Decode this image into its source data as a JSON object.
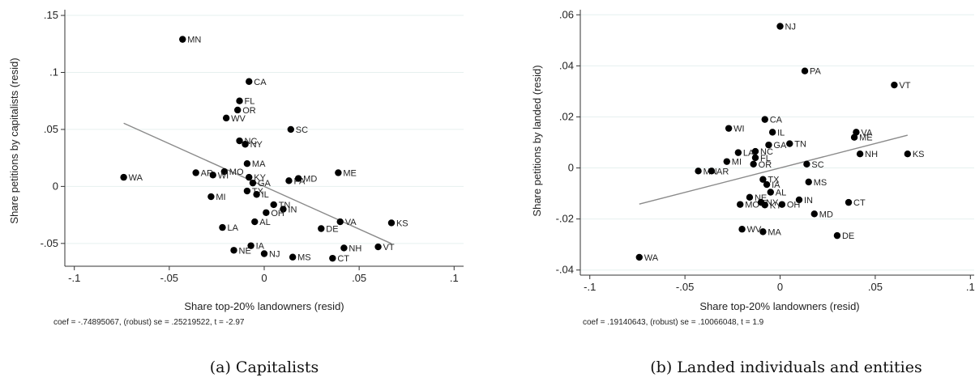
{
  "chart_data": [
    {
      "type": "scatter",
      "xlabel": "Share top-20% landowners (resid)",
      "ylabel": "Share petitions by capitalists (resid)",
      "xlim": [
        -0.105,
        0.105
      ],
      "ylim": [
        -0.07,
        0.155
      ],
      "xticks": [
        -0.1,
        -0.05,
        0,
        0.05,
        0.1
      ],
      "xtick_labels": [
        "-.1",
        "-.05",
        "0",
        ".05",
        ".1"
      ],
      "yticks": [
        -0.05,
        0,
        0.05,
        0.1,
        0.15
      ],
      "ytick_labels": [
        "-.05",
        "0",
        ".05",
        ".1",
        ".15"
      ],
      "grid": "horizontal",
      "fit_line": {
        "intercept": 0,
        "slope": -0.74895067
      },
      "note": "coef = -.74895067, (robust) se = .25219522, t = -2.97",
      "caption": "(a) Capitalists",
      "points": [
        {
          "label": "MN",
          "x": -0.043,
          "y": 0.129
        },
        {
          "label": "CA",
          "x": -0.008,
          "y": 0.092
        },
        {
          "label": "FL",
          "x": -0.013,
          "y": 0.075
        },
        {
          "label": "OR",
          "x": -0.014,
          "y": 0.067
        },
        {
          "label": "WV",
          "x": -0.02,
          "y": 0.06
        },
        {
          "label": "SC",
          "x": 0.014,
          "y": 0.05
        },
        {
          "label": "NC",
          "x": -0.013,
          "y": 0.04
        },
        {
          "label": "NY",
          "x": -0.01,
          "y": 0.037
        },
        {
          "label": "MA",
          "x": -0.009,
          "y": 0.02
        },
        {
          "label": "MO",
          "x": -0.021,
          "y": 0.013
        },
        {
          "label": "AR",
          "x": -0.036,
          "y": 0.012
        },
        {
          "label": "WI",
          "x": -0.027,
          "y": 0.01
        },
        {
          "label": "ME",
          "x": 0.039,
          "y": 0.012
        },
        {
          "label": "WA",
          "x": -0.074,
          "y": 0.008
        },
        {
          "label": "KY",
          "x": -0.008,
          "y": 0.008
        },
        {
          "label": "PA",
          "x": 0.013,
          "y": 0.005
        },
        {
          "label": "MD",
          "x": 0.018,
          "y": 0.007
        },
        {
          "label": "GA",
          "x": -0.006,
          "y": 0.003
        },
        {
          "label": "TX",
          "x": -0.009,
          "y": -0.004
        },
        {
          "label": "IL",
          "x": -0.004,
          "y": -0.007
        },
        {
          "label": "MI",
          "x": -0.028,
          "y": -0.009
        },
        {
          "label": "TN",
          "x": 0.005,
          "y": -0.016
        },
        {
          "label": "IN",
          "x": 0.01,
          "y": -0.02
        },
        {
          "label": "OH",
          "x": 0.001,
          "y": -0.023
        },
        {
          "label": "AL",
          "x": -0.005,
          "y": -0.031
        },
        {
          "label": "VA",
          "x": 0.04,
          "y": -0.031
        },
        {
          "label": "KS",
          "x": 0.067,
          "y": -0.032
        },
        {
          "label": "LA",
          "x": -0.022,
          "y": -0.036
        },
        {
          "label": "DE",
          "x": 0.03,
          "y": -0.037
        },
        {
          "label": "IA",
          "x": -0.007,
          "y": -0.052
        },
        {
          "label": "VT",
          "x": 0.06,
          "y": -0.053
        },
        {
          "label": "NH",
          "x": 0.042,
          "y": -0.054
        },
        {
          "label": "NE",
          "x": -0.016,
          "y": -0.056
        },
        {
          "label": "NJ",
          "x": 0.0,
          "y": -0.059
        },
        {
          "label": "MS",
          "x": 0.015,
          "y": -0.062
        },
        {
          "label": "CT",
          "x": 0.036,
          "y": -0.063
        }
      ]
    },
    {
      "type": "scatter",
      "xlabel": "Share top-20% landowners (resid)",
      "ylabel": "Share petitions by landed (resid)",
      "xlim": [
        -0.105,
        0.102
      ],
      "ylim": [
        -0.042,
        0.062
      ],
      "xticks": [
        -0.1,
        -0.05,
        0,
        0.05,
        0.1
      ],
      "xtick_labels": [
        "-.1",
        "-.05",
        "0",
        ".05",
        ".1"
      ],
      "yticks": [
        -0.04,
        -0.02,
        0,
        0.02,
        0.04,
        0.06
      ],
      "ytick_labels": [
        "-.04",
        "-.02",
        "0",
        ".02",
        ".04",
        ".06"
      ],
      "grid": "horizontal",
      "fit_line": {
        "intercept": 0,
        "slope": 0.19140643
      },
      "note": "coef = .19140643, (robust) se = .10066048, t = 1.9",
      "caption": "(b) Landed individuals and entities",
      "points": [
        {
          "label": "NJ",
          "x": 0.0,
          "y": 0.0555
        },
        {
          "label": "PA",
          "x": 0.013,
          "y": 0.038
        },
        {
          "label": "VT",
          "x": 0.06,
          "y": 0.0325
        },
        {
          "label": "CA",
          "x": -0.008,
          "y": 0.019
        },
        {
          "label": "WI",
          "x": -0.027,
          "y": 0.0155
        },
        {
          "label": "IL",
          "x": -0.004,
          "y": 0.014
        },
        {
          "label": "VA",
          "x": 0.04,
          "y": 0.014
        },
        {
          "label": "ME",
          "x": 0.039,
          "y": 0.012
        },
        {
          "label": "GA",
          "x": -0.006,
          "y": 0.009
        },
        {
          "label": "TN",
          "x": 0.005,
          "y": 0.0095
        },
        {
          "label": "NC",
          "x": -0.013,
          "y": 0.0065
        },
        {
          "label": "LA",
          "x": -0.022,
          "y": 0.006
        },
        {
          "label": "NH",
          "x": 0.042,
          "y": 0.0055
        },
        {
          "label": "KS",
          "x": 0.067,
          "y": 0.0055
        },
        {
          "label": "FL",
          "x": -0.013,
          "y": 0.004
        },
        {
          "label": "MI",
          "x": -0.028,
          "y": 0.0025
        },
        {
          "label": "OR",
          "x": -0.014,
          "y": 0.0015
        },
        {
          "label": "SC",
          "x": 0.014,
          "y": 0.0015
        },
        {
          "label": "MN",
          "x": -0.043,
          "y": -0.0012
        },
        {
          "label": "AR",
          "x": -0.036,
          "y": -0.0012
        },
        {
          "label": "TX",
          "x": -0.009,
          "y": -0.0045
        },
        {
          "label": "MS",
          "x": 0.015,
          "y": -0.0055
        },
        {
          "label": "IA",
          "x": -0.007,
          "y": -0.0065
        },
        {
          "label": "AL",
          "x": -0.005,
          "y": -0.0095
        },
        {
          "label": "NE",
          "x": -0.016,
          "y": -0.0115
        },
        {
          "label": "IN",
          "x": 0.01,
          "y": -0.0125
        },
        {
          "label": "CT",
          "x": 0.036,
          "y": -0.0135
        },
        {
          "label": "MO",
          "x": -0.021,
          "y": -0.0143
        },
        {
          "label": "NY",
          "x": -0.01,
          "y": -0.0135
        },
        {
          "label": "KY",
          "x": -0.008,
          "y": -0.0145
        },
        {
          "label": "OH",
          "x": 0.001,
          "y": -0.0143
        },
        {
          "label": "MD",
          "x": 0.018,
          "y": -0.018
        },
        {
          "label": "WV",
          "x": -0.02,
          "y": -0.024
        },
        {
          "label": "MA",
          "x": -0.009,
          "y": -0.025
        },
        {
          "label": "DE",
          "x": 0.03,
          "y": -0.0265
        },
        {
          "label": "WA",
          "x": -0.074,
          "y": -0.035
        }
      ]
    }
  ]
}
